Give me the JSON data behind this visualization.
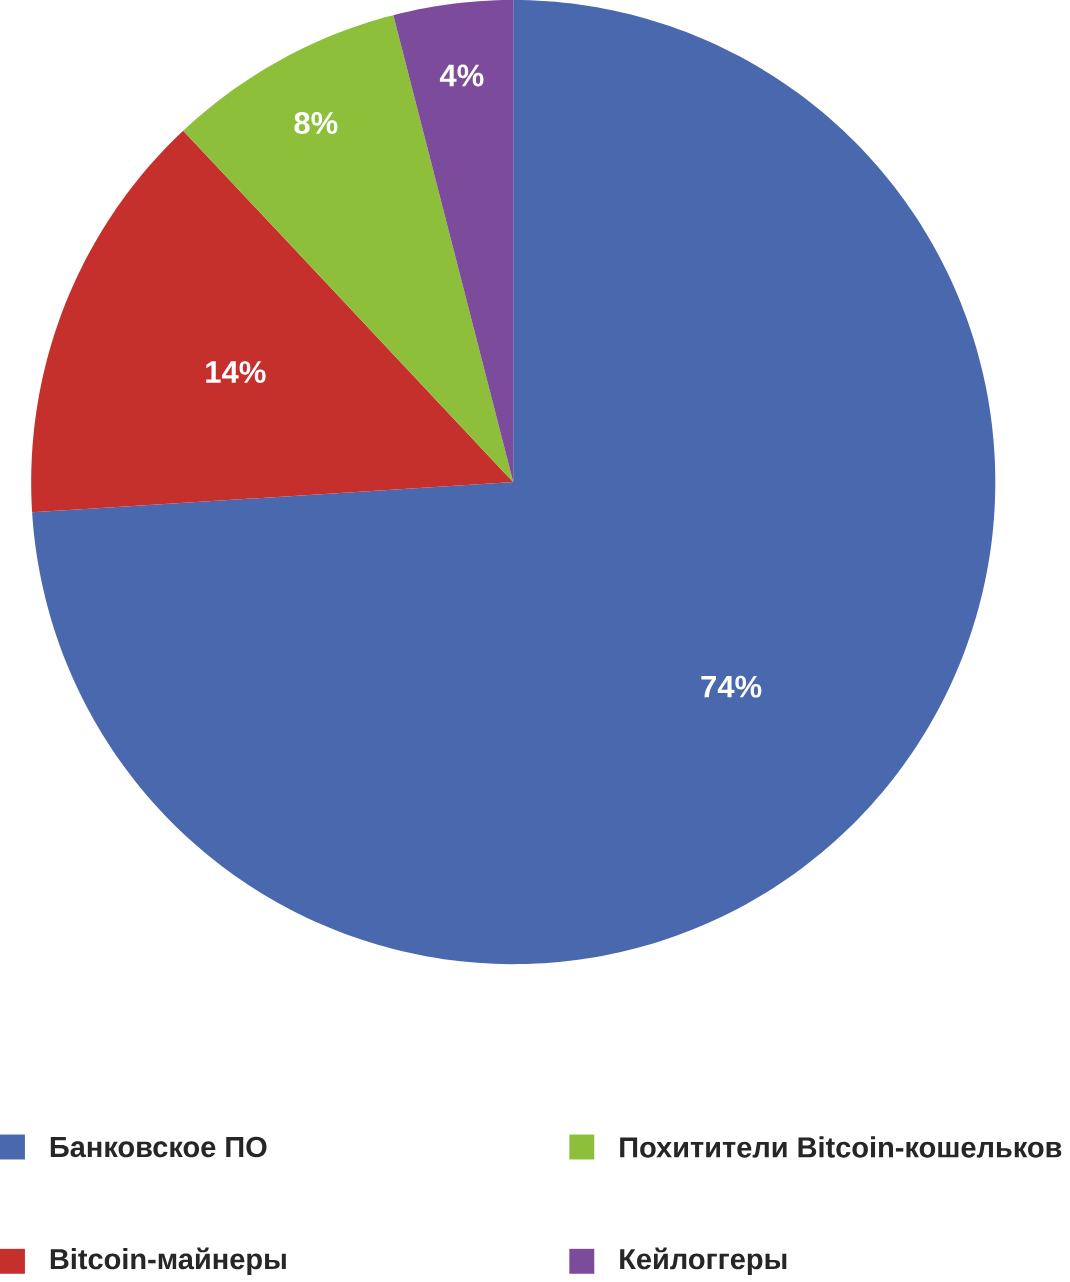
{
  "chart_data": {
    "type": "pie",
    "categories": [
      "Банковское ПО",
      "Bitcoin-майнеры",
      "Похитители Bitcoin-кошельков",
      "Кейлоггеры"
    ],
    "values": [
      74,
      14,
      8,
      4
    ],
    "value_labels": [
      "74%",
      "14%",
      "8%",
      "4%"
    ],
    "colors": [
      "#4a68ad",
      "#c5302d",
      "#8dbf3b",
      "#7c4b9b"
    ],
    "legend": "bottom"
  }
}
